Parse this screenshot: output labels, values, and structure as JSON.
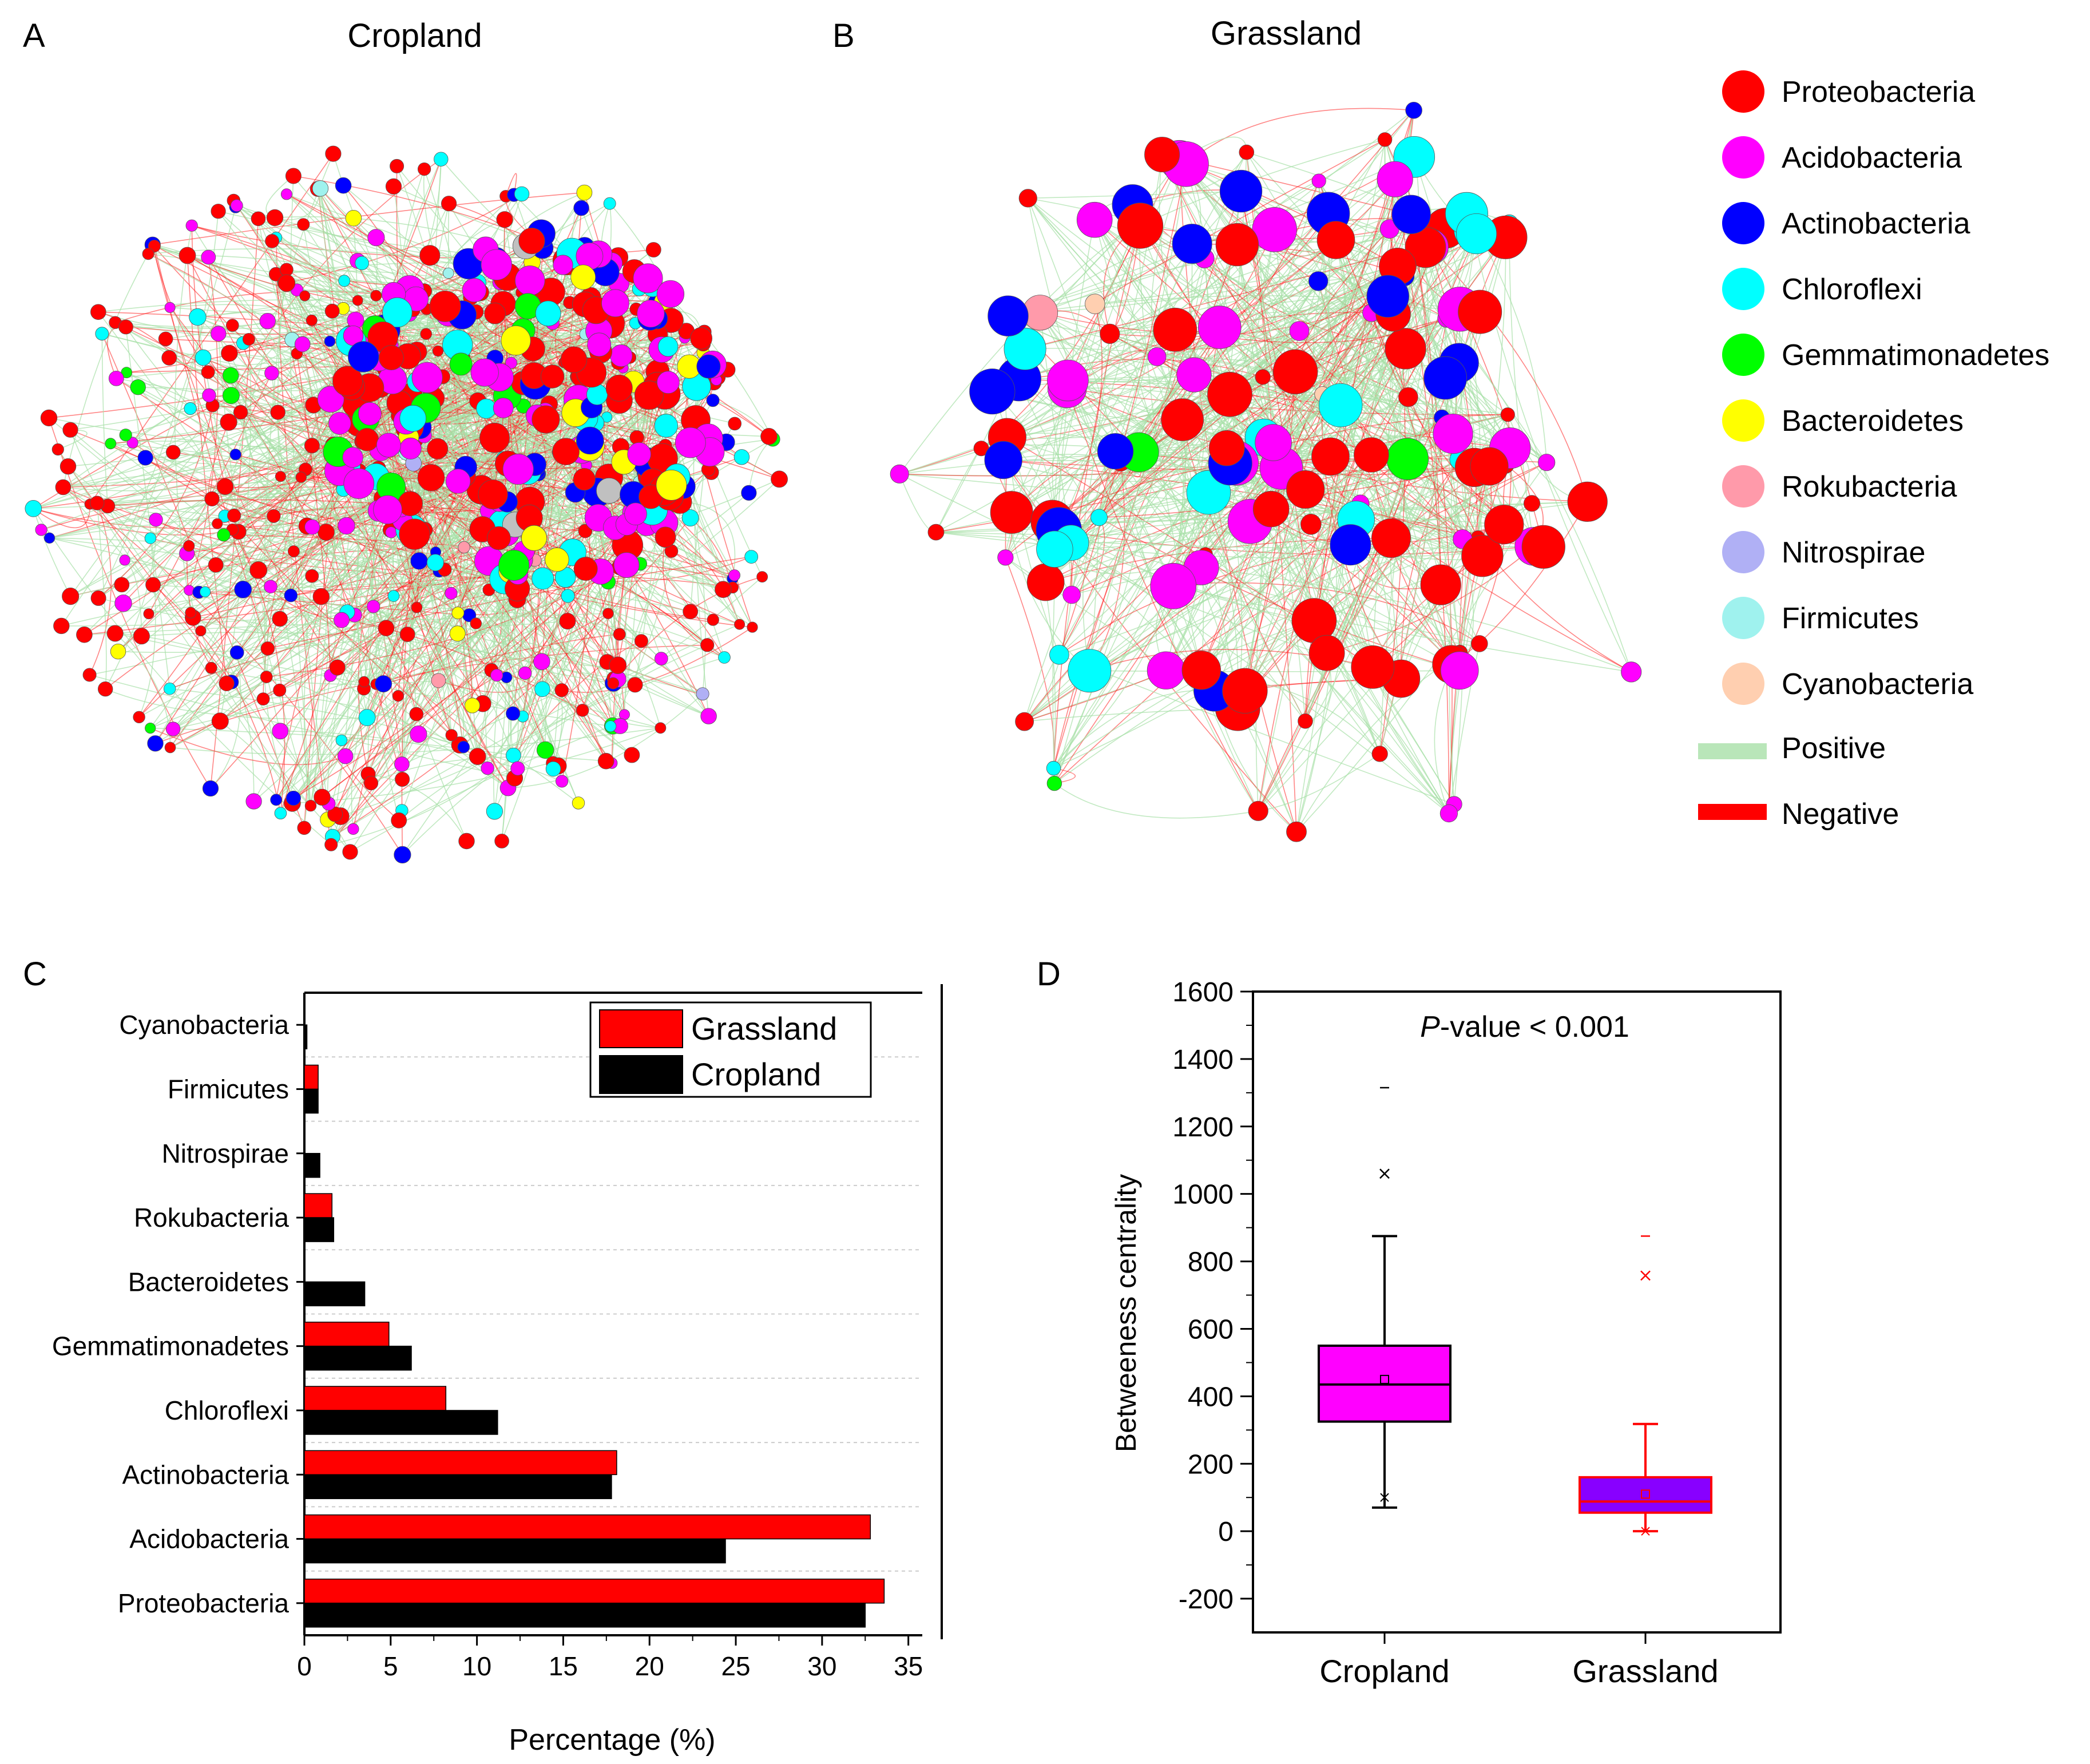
{
  "panels": {
    "A": {
      "label": "A",
      "title": "Cropland"
    },
    "B": {
      "label": "B",
      "title": "Grassland"
    },
    "C": {
      "label": "C"
    },
    "D": {
      "label": "D"
    }
  },
  "colors": {
    "Proteobacteria": "#ff0000",
    "Acidobacteria": "#ff00ff",
    "Actinobacteria": "#0000ff",
    "Chloroflexi": "#00ffff",
    "Gemmatimonadetes": "#00ff00",
    "Bacteroidetes": "#ffff00",
    "Rokubacteria": "#ff9aaa",
    "Nitrospirae": "#b0b0f5",
    "Firmicutes": "#9ff2ee",
    "Cyanobacteria": "#ffcfb0",
    "Unassigned": "#c0c0c0",
    "positive_edge": "#a6e0a6",
    "negative_edge": "#ff2020"
  },
  "legend": {
    "items": [
      {
        "name": "Proteobacteria",
        "color": "#ff0000"
      },
      {
        "name": "Acidobacteria",
        "color": "#ff00ff"
      },
      {
        "name": "Actinobacteria",
        "color": "#0000ff"
      },
      {
        "name": "Chloroflexi",
        "color": "#00ffff"
      },
      {
        "name": "Gemmatimonadetes",
        "color": "#00ff00"
      },
      {
        "name": "Bacteroidetes",
        "color": "#ffff00"
      },
      {
        "name": "Rokubacteria",
        "color": "#ff9aaa"
      },
      {
        "name": "Nitrospirae",
        "color": "#b0b0f5"
      },
      {
        "name": "Firmicutes",
        "color": "#9ff2ee"
      },
      {
        "name": "Cyanobacteria",
        "color": "#ffcfb0"
      }
    ],
    "edges": [
      {
        "name": "Positive",
        "color": "#b9e6b9"
      },
      {
        "name": "Negative",
        "color": "#ff0000"
      }
    ]
  },
  "chart_data": [
    {
      "panel": "A",
      "type": "network",
      "title": "Cropland",
      "edge_types": [
        "Positive",
        "Negative"
      ]
    },
    {
      "panel": "B",
      "type": "network",
      "title": "Grassland",
      "edge_types": [
        "Positive",
        "Negative"
      ]
    },
    {
      "panel": "C",
      "type": "bar",
      "orientation": "horizontal",
      "categories": [
        "Proteobacteria",
        "Acidobacteria",
        "Actinobacteria",
        "Chloroflexi",
        "Gemmatimonadetes",
        "Bacteroidetes",
        "Rokubacteria",
        "Nitrospirae",
        "Firmicutes",
        "Cyanobacteria"
      ],
      "series": [
        {
          "name": "Grassland",
          "color": "#ff0000",
          "values": [
            33.6,
            32.8,
            18.1,
            8.2,
            4.9,
            0,
            1.6,
            0,
            0.8,
            0
          ]
        },
        {
          "name": "Cropland",
          "color": "#000000",
          "values": [
            32.5,
            24.4,
            17.8,
            11.2,
            6.2,
            3.5,
            1.7,
            0.9,
            0.8,
            0.15
          ]
        }
      ],
      "xlabel": "Percentage (%)",
      "xlim": [
        0,
        37
      ],
      "xticks": [
        0,
        5,
        10,
        15,
        20,
        25,
        30,
        35
      ],
      "legend_position": "top-right"
    },
    {
      "panel": "D",
      "type": "box",
      "categories": [
        "Cropland",
        "Grassland"
      ],
      "ylabel": "Betweeness centrality",
      "ylim": [
        -300,
        1600
      ],
      "yticks": [
        -200,
        0,
        200,
        400,
        600,
        800,
        1000,
        1200,
        1400,
        1600
      ],
      "annotation_prefix": "P",
      "annotation_suffix": "-value < 0.001",
      "boxes": [
        {
          "name": "Cropland",
          "fill": "#ff00ff",
          "edge": "#000000",
          "q1": 325,
          "median": 435,
          "q3": 550,
          "mean": 450,
          "whisker_low": 70,
          "whisker_high": 875,
          "outlier_x": 1060,
          "max_dash": 1315,
          "min_x": 100
        },
        {
          "name": "Grassland",
          "fill": "#8800ff",
          "edge": "#ff0000",
          "q1": 55,
          "median": 88,
          "q3": 160,
          "mean": 110,
          "whisker_low": 0,
          "whisker_high": 318,
          "outlier_x": 758,
          "max_dash": 875,
          "min_x": 0
        }
      ]
    }
  ]
}
